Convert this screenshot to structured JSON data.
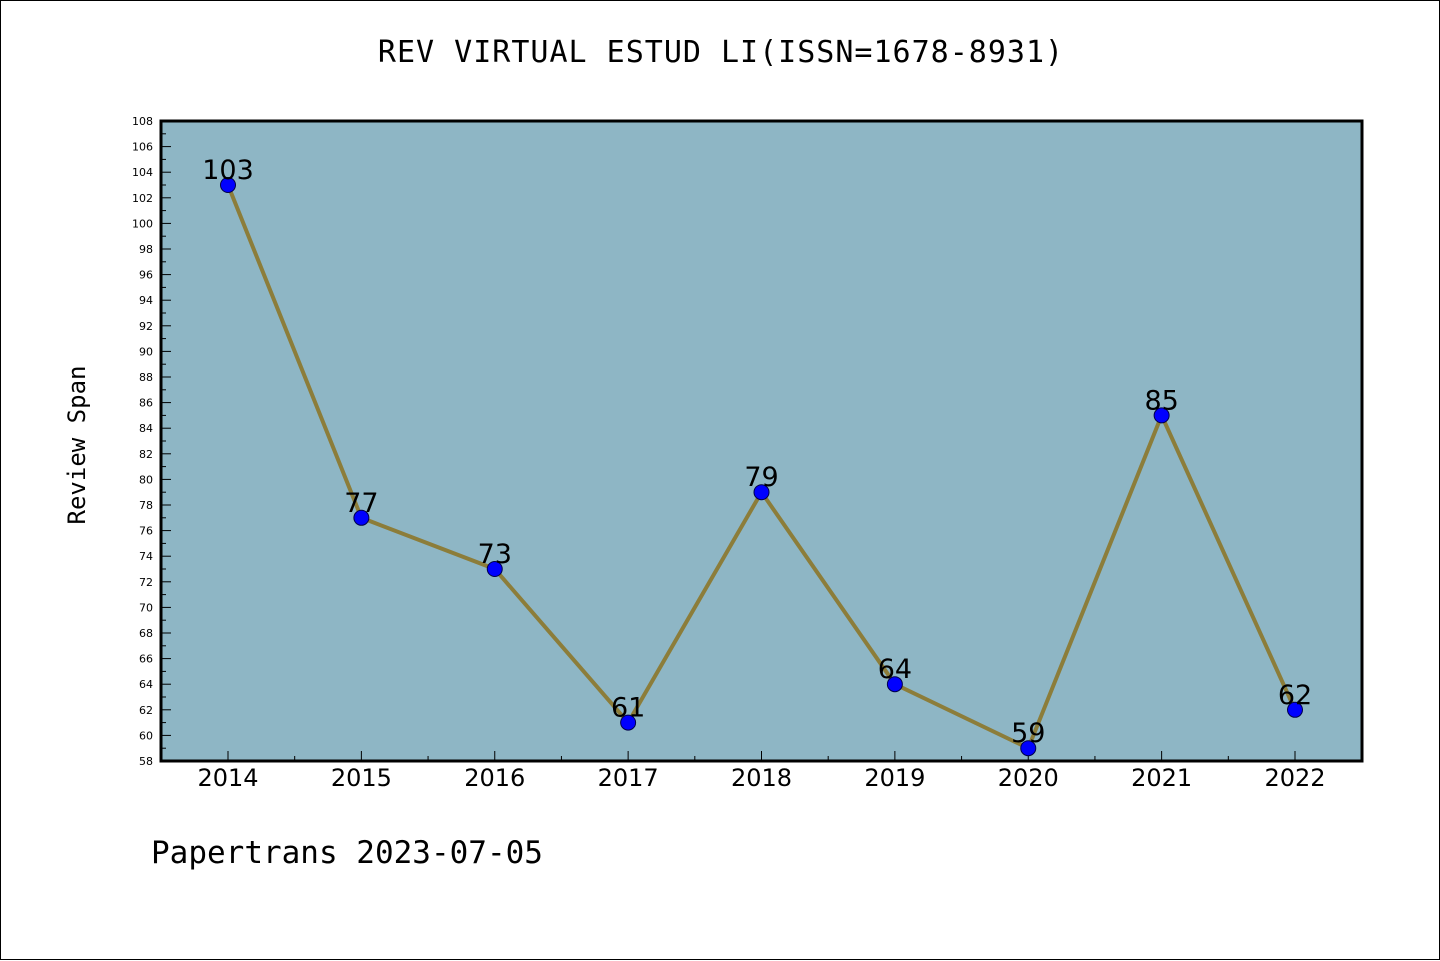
{
  "chart_data": {
    "type": "line",
    "title": "REV VIRTUAL ESTUD LI(ISSN=1678-8931)",
    "xlabel": "",
    "ylabel": "Review Span",
    "x": [
      "2014",
      "2015",
      "2016",
      "2017",
      "2018",
      "2019",
      "2020",
      "2021",
      "2022"
    ],
    "series": [
      {
        "values": [
          103,
          77,
          73,
          61,
          79,
          64,
          59,
          85,
          62
        ]
      }
    ],
    "data_labels": [
      "103",
      "77",
      "73",
      "61",
      "79",
      "64",
      "59",
      "85",
      "62"
    ],
    "ylim": [
      58,
      108
    ],
    "yticks": [
      "58",
      "60",
      "62",
      "64",
      "66",
      "68",
      "70",
      "72",
      "74",
      "76",
      "78",
      "80",
      "82",
      "84",
      "86",
      "88",
      "90",
      "92",
      "94",
      "96",
      "98",
      "100",
      "102",
      "104",
      "106",
      "108"
    ],
    "grid": false,
    "legend": "none",
    "colors": {
      "plot_background": "#8eb6c5",
      "line": "#8c7d3a",
      "marker": "#0000ff",
      "marker_edge": "#00004a",
      "axes": "#000000"
    }
  },
  "footer": "Papertrans 2023-07-05"
}
